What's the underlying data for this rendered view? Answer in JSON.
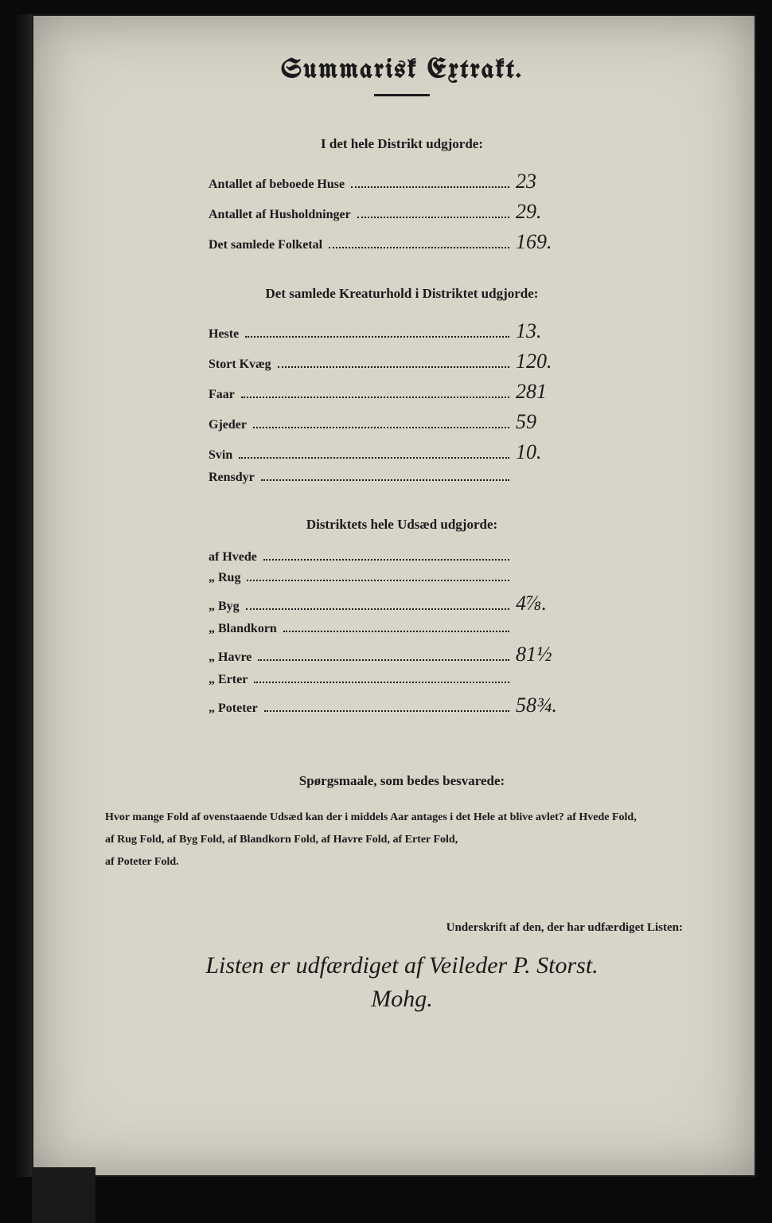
{
  "document": {
    "title": "Summarisk Extrakt.",
    "background_color": "#d8d4c8",
    "text_color": "#1a1a1a",
    "handwriting_color": "#1a1a1a"
  },
  "section1": {
    "heading": "I det hele Distrikt udgjorde:",
    "rows": [
      {
        "label": "Antallet af beboede Huse",
        "value": "23"
      },
      {
        "label": "Antallet af Husholdninger",
        "value": "29."
      },
      {
        "label": "Det samlede Folketal",
        "value": "169."
      }
    ]
  },
  "section2": {
    "heading": "Det samlede Kreaturhold i Distriktet udgjorde:",
    "rows": [
      {
        "label": "Heste",
        "value": "13."
      },
      {
        "label": "Stort Kvæg",
        "value": "120."
      },
      {
        "label": "Faar",
        "value": "281"
      },
      {
        "label": "Gjeder",
        "value": "59"
      },
      {
        "label": "Svin",
        "value": "10."
      },
      {
        "label": "Rensdyr",
        "value": ""
      }
    ]
  },
  "section3": {
    "heading": "Distriktets hele Udsæd udgjorde:",
    "rows": [
      {
        "label": "af Hvede",
        "value": ""
      },
      {
        "label": "„ Rug",
        "value": ""
      },
      {
        "label": "„ Byg",
        "value": "4⅞."
      },
      {
        "label": "„ Blandkorn",
        "value": ""
      },
      {
        "label": "„ Havre",
        "value": "81½"
      },
      {
        "label": "„ Erter",
        "value": ""
      },
      {
        "label": "„ Poteter",
        "value": "58¾."
      }
    ]
  },
  "questions": {
    "heading": "Spørgsmaale, som bedes besvarede:",
    "line1": "Hvor mange Fold af ovenstaaende Udsæd kan der i middels Aar antages i det Hele at blive avlet?  af Hvede            Fold,",
    "line2": "af Rug            Fold, af Byg            Fold, af Blandkorn            Fold, af Havre            Fold, af Erter            Fold,",
    "line3": "af Poteter            Fold."
  },
  "signature": {
    "label": "Underskrift af den, der har udfærdiget Listen:",
    "text1": "Listen er udfærdiget af Veileder P. Storst.",
    "text2": "Mohg."
  }
}
